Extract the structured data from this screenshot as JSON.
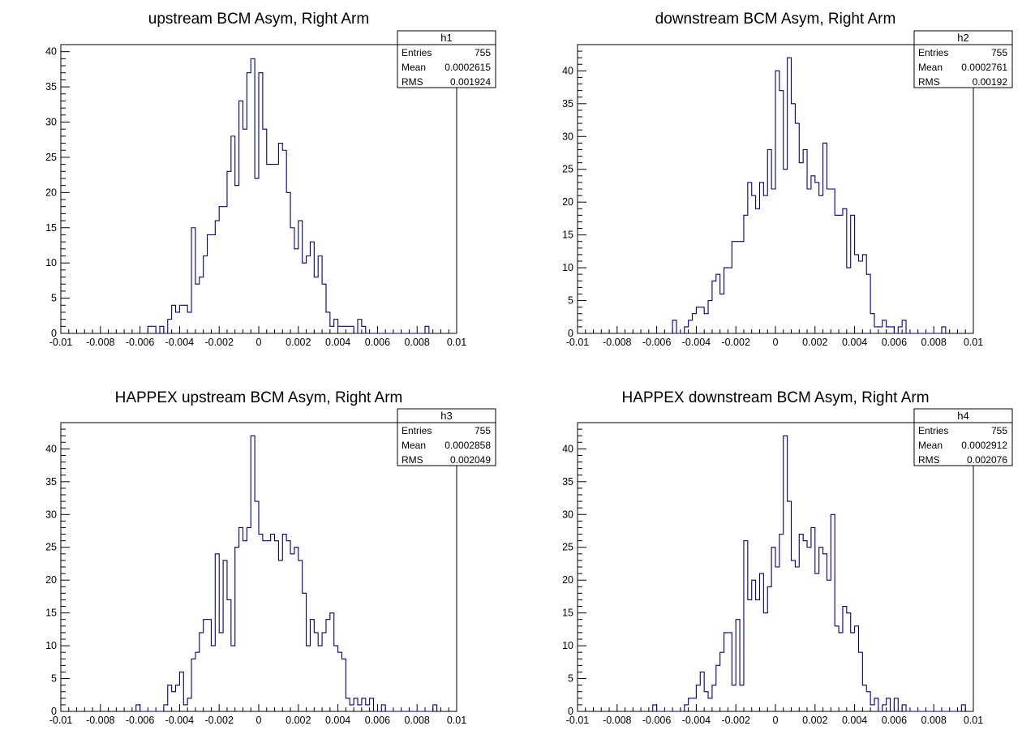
{
  "chart_data": [
    {
      "type": "bar",
      "title": "upstream BCM Asym, Right Arm",
      "stats": {
        "name": "h1",
        "entries_label": "Entries",
        "entries": "755",
        "mean_label": "Mean",
        "mean": "0.0002615",
        "rms_label": "RMS",
        "rms": "0.001924"
      },
      "xlim": [
        -0.01,
        0.01
      ],
      "ylim": [
        0,
        41
      ],
      "x_ticks": [
        "-0.01",
        "-0.008",
        "-0.006",
        "-0.004",
        "-0.002",
        "0",
        "0.002",
        "0.004",
        "0.006",
        "0.008",
        "0.01"
      ],
      "y_ticks": [
        "0",
        "5",
        "10",
        "15",
        "20",
        "25",
        "30",
        "35",
        "40"
      ],
      "bin_width": 0.0002,
      "bin_start": -0.0056,
      "values": [
        1,
        1,
        0,
        1,
        0,
        2,
        4,
        3,
        4,
        4,
        3,
        15,
        7,
        8,
        11,
        14,
        14,
        16,
        18,
        18,
        23,
        28,
        21,
        33,
        29,
        37,
        39,
        22,
        37,
        29,
        24,
        24,
        24,
        27,
        26,
        20,
        15,
        12,
        16,
        10,
        11,
        13,
        8,
        11,
        7,
        3,
        1,
        2,
        1,
        1,
        1,
        1,
        0,
        2,
        1,
        0,
        0,
        0,
        0,
        0,
        0,
        0,
        0,
        0,
        0,
        0,
        0,
        0,
        0,
        0,
        1
      ]
    },
    {
      "type": "bar",
      "title": "downstream BCM Asym, Right Arm",
      "stats": {
        "name": "h2",
        "entries_label": "Entries",
        "entries": "755",
        "mean_label": "Mean",
        "mean": "0.0002761",
        "rms_label": "RMS",
        "rms": "0.00192"
      },
      "xlim": [
        -0.01,
        0.01
      ],
      "ylim": [
        0,
        44
      ],
      "x_ticks": [
        "-0.01",
        "-0.008",
        "-0.006",
        "-0.004",
        "-0.002",
        "0",
        "0.002",
        "0.004",
        "0.006",
        "0.008",
        "0.01"
      ],
      "y_ticks": [
        "0",
        "5",
        "10",
        "15",
        "20",
        "25",
        "30",
        "35",
        "40"
      ],
      "bin_width": 0.0002,
      "bin_start": -0.0054,
      "values": [
        0,
        2,
        0,
        0,
        1,
        2,
        3,
        4,
        4,
        3,
        5,
        8,
        9,
        6,
        10,
        10,
        14,
        14,
        14,
        18,
        23,
        21,
        19,
        23,
        21,
        28,
        22,
        40,
        37,
        25,
        42,
        35,
        32,
        26,
        28,
        22,
        24,
        23,
        21,
        29,
        22,
        22,
        18,
        18,
        19,
        10,
        18,
        12,
        11,
        12,
        9,
        3,
        1,
        1,
        2,
        1,
        1,
        0,
        1,
        2,
        0,
        0,
        0,
        0,
        0,
        0,
        0,
        0,
        0,
        1
      ]
    },
    {
      "type": "bar",
      "title": "HAPPEX upstream BCM Asym, Right Arm",
      "stats": {
        "name": "h3",
        "entries_label": "Entries",
        "entries": "755",
        "mean_label": "Mean",
        "mean": "0.0002858",
        "rms_label": "RMS",
        "rms": "0.002049"
      },
      "xlim": [
        -0.01,
        0.01
      ],
      "ylim": [
        0,
        44
      ],
      "x_ticks": [
        "-0.01",
        "-0.008",
        "-0.006",
        "-0.004",
        "-0.002",
        "0",
        "0.002",
        "0.004",
        "0.006",
        "0.008",
        "0.01"
      ],
      "y_ticks": [
        "0",
        "5",
        "10",
        "15",
        "20",
        "25",
        "30",
        "35",
        "40"
      ],
      "bin_width": 0.0002,
      "bin_start": -0.0062,
      "values": [
        1,
        0,
        0,
        0,
        0,
        0,
        0,
        1,
        4,
        3,
        4,
        6,
        1,
        2,
        8,
        9,
        12,
        14,
        14,
        10,
        24,
        12,
        23,
        17,
        10,
        25,
        28,
        26,
        28,
        42,
        32,
        27,
        26,
        26,
        27,
        26,
        23,
        27,
        26,
        24,
        25,
        23,
        18,
        10,
        14,
        12,
        10,
        12,
        14,
        15,
        10,
        9,
        8,
        2,
        1,
        2,
        1,
        2,
        1,
        2,
        0,
        0,
        1,
        0,
        0,
        0,
        0,
        0,
        0,
        0,
        0,
        0,
        0,
        0,
        0,
        1
      ]
    },
    {
      "type": "bar",
      "title": "HAPPEX downstream BCM Asym, Right Arm",
      "stats": {
        "name": "h4",
        "entries_label": "Entries",
        "entries": "755",
        "mean_label": "Mean",
        "mean": "0.0002912",
        "rms_label": "RMS",
        "rms": "0.002076"
      },
      "xlim": [
        -0.01,
        0.01
      ],
      "ylim": [
        0,
        44
      ],
      "x_ticks": [
        "-0.01",
        "-0.008",
        "-0.006",
        "-0.004",
        "-0.002",
        "0",
        "0.002",
        "0.004",
        "0.006",
        "0.008",
        "0.01"
      ],
      "y_ticks": [
        "0",
        "5",
        "10",
        "15",
        "20",
        "25",
        "30",
        "35",
        "40"
      ],
      "bin_width": 0.0002,
      "bin_start": -0.0062,
      "values": [
        1,
        0,
        0,
        0,
        0,
        0,
        0,
        0,
        1,
        2,
        2,
        4,
        6,
        3,
        2,
        4,
        7,
        9,
        12,
        12,
        4,
        14,
        4,
        26,
        17,
        20,
        17,
        21,
        15,
        19,
        25,
        22,
        27,
        42,
        32,
        23,
        22,
        27,
        26,
        25,
        28,
        21,
        25,
        24,
        20,
        30,
        13,
        12,
        16,
        15,
        12,
        13,
        9,
        4,
        3,
        1,
        2,
        0,
        1,
        2,
        0,
        2,
        0,
        1,
        0,
        0,
        0,
        0,
        0,
        0,
        0,
        0,
        0,
        0,
        0,
        0,
        0,
        0,
        1
      ]
    }
  ],
  "colors": {
    "histogram": "#000080",
    "axis": "#000000",
    "background": "#ffffff"
  }
}
